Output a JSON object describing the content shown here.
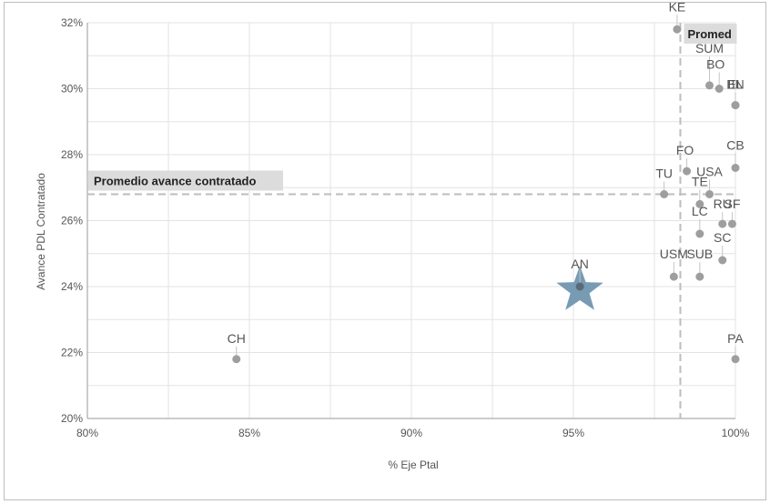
{
  "chart_data": {
    "type": "scatter",
    "xlabel": "% Eje Ptal",
    "ylabel": "Avance PDL Contratado",
    "xlim": [
      80,
      100
    ],
    "ylim": [
      20,
      32
    ],
    "x_ticks": [
      "80%",
      "85%",
      "90%",
      "95%",
      "100%"
    ],
    "y_ticks": [
      "20%",
      "22%",
      "24%",
      "26%",
      "28%",
      "30%",
      "32%"
    ],
    "grid": true,
    "reference_lines": {
      "horizontal": {
        "label": "Promedio avance contratado",
        "value": 26.8
      },
      "vertical": {
        "label": "Promed",
        "value": 98.3
      }
    },
    "highlight": {
      "name": "AN",
      "x": 95.2,
      "y": 24.0
    },
    "points": [
      {
        "name": "KE",
        "x": 98.2,
        "y": 31.8
      },
      {
        "name": "SUM",
        "x": 99.2,
        "y": 30.1
      },
      {
        "name": "BO",
        "x": 99.5,
        "y": 30.0
      },
      {
        "name": "BN",
        "x": 100.0,
        "y": 29.5
      },
      {
        "name": "EL",
        "x": 100.0,
        "y": 29.5
      },
      {
        "name": "CB",
        "x": 100.0,
        "y": 27.6
      },
      {
        "name": "FO",
        "x": 98.5,
        "y": 27.5
      },
      {
        "name": "USA",
        "x": 99.2,
        "y": 26.8
      },
      {
        "name": "TU",
        "x": 97.8,
        "y": 26.8
      },
      {
        "name": "TE",
        "x": 98.9,
        "y": 26.5
      },
      {
        "name": "RU",
        "x": 99.6,
        "y": 25.9
      },
      {
        "name": "SF",
        "x": 99.9,
        "y": 25.9
      },
      {
        "name": "LC",
        "x": 98.9,
        "y": 25.6
      },
      {
        "name": "SC",
        "x": 99.6,
        "y": 24.8
      },
      {
        "name": "USM",
        "x": 98.1,
        "y": 24.3
      },
      {
        "name": "SUB",
        "x": 98.9,
        "y": 24.3
      },
      {
        "name": "CH",
        "x": 84.6,
        "y": 21.8
      },
      {
        "name": "PA",
        "x": 100.0,
        "y": 21.8
      }
    ]
  }
}
